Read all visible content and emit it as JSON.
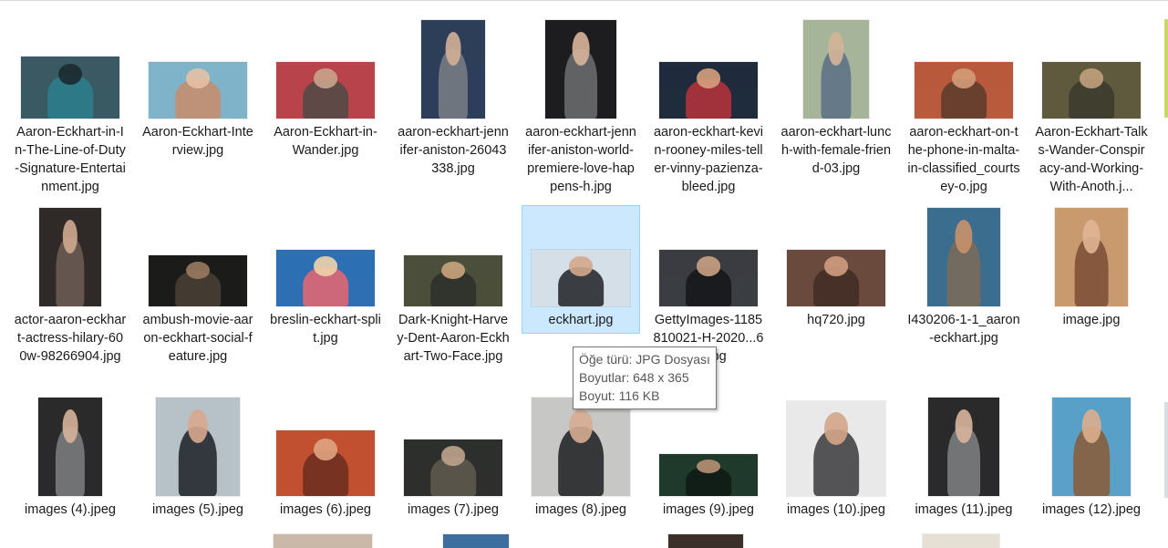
{
  "files": [
    {
      "label": "Aaron-Eckhart-in-In-The-Line-of-Duty-Signature-Entertainment.jpg",
      "icon": "image-thumbnail-icon",
      "colors": [
        "#3a5a63",
        "#2c7f8e",
        "#1c2a30"
      ]
    },
    {
      "label": "Aaron-Eckhart-Interview.jpg",
      "icon": "image-thumbnail-icon",
      "colors": [
        "#7fb3c9",
        "#c98c6a",
        "#e6c1a5"
      ]
    },
    {
      "label": "Aaron-Eckhart-in-Wander.jpg",
      "icon": "image-thumbnail-icon",
      "colors": [
        "#b9434a",
        "#4f4a46",
        "#c9a48d"
      ]
    },
    {
      "label": "aaron-eckhart-jennifer-aniston-26043338.jpg",
      "icon": "image-thumbnail-icon",
      "colors": [
        "#2d3e5a",
        "#7a7f85",
        "#d1b096"
      ]
    },
    {
      "label": "aaron-eckhart-jennifer-aniston-world-premiere-love-happens-h.jpg",
      "icon": "image-thumbnail-icon",
      "colors": [
        "#1d1d1f",
        "#6d6f70",
        "#d9b59a"
      ]
    },
    {
      "label": "aaron-eckhart-kevin-rooney-miles-teller-vinny-pazienza-bleed.jpg",
      "icon": "image-thumbnail-icon",
      "colors": [
        "#1f2c3c",
        "#b8323a",
        "#d6a07d"
      ]
    },
    {
      "label": "aaron-eckhart-lunch-with-female-friend-03.jpg",
      "icon": "image-thumbnail-icon",
      "colors": [
        "#a6b59a",
        "#5a6f86",
        "#d4b49a"
      ]
    },
    {
      "label": "aaron-eckhart-on-the-phone-in-malta-in-classified_courtsey-o.jpg",
      "icon": "image-thumbnail-icon",
      "colors": [
        "#b95a3c",
        "#5a3c2c",
        "#d49b78"
      ]
    },
    {
      "label": "Aaron-Eckhart-Talks-Wander-Conspiracy-and-Working-With-Anoth.j...",
      "icon": "image-thumbnail-icon",
      "colors": [
        "#5f5a3e",
        "#3b3a2c",
        "#c2a07c"
      ]
    },
    {
      "label": "actor-aaron-eckhart-actress-hilary-600w-98266904.jpg",
      "icon": "image-thumbnail-icon",
      "colors": [
        "#2f2a28",
        "#6d5d55",
        "#cfa890"
      ]
    },
    {
      "label": "ambush-movie-aaron-eckhart-social-feature.jpg",
      "icon": "image-thumbnail-icon",
      "colors": [
        "#1b1c1a",
        "#4a4036",
        "#9a7a60"
      ]
    },
    {
      "label": "breslin-eckhart-split.jpg",
      "icon": "image-thumbnail-icon",
      "colors": [
        "#2e6fb3",
        "#e7676e",
        "#f0d1a8"
      ]
    },
    {
      "label": "Dark-Knight-Harvey-Dent-Aaron-Eckhart-Two-Face.jpg",
      "icon": "image-thumbnail-icon",
      "colors": [
        "#4b4f3a",
        "#2b2f2a",
        "#c9a47e"
      ]
    },
    {
      "label": "eckhart.jpg",
      "icon": "image-thumbnail-icon",
      "colors": [
        "#d5dfe8",
        "#1f2125",
        "#d3a98c"
      ]
    },
    {
      "label": "GettyImages-1185810021-H-2020...690.jpg",
      "icon": "image-thumbnail-icon",
      "colors": [
        "#3a3d42",
        "#141518",
        "#caa084"
      ]
    },
    {
      "label": "hq720.jpg",
      "icon": "image-thumbnail-icon",
      "colors": [
        "#6a4a3c",
        "#3f2c24",
        "#cf9c7f"
      ]
    },
    {
      "label": "I430206-1-1_aaron-eckhart.jpg",
      "icon": "image-thumbnail-icon",
      "colors": [
        "#3b6e8e",
        "#7e6a58",
        "#c9916c"
      ]
    },
    {
      "label": "image.jpg",
      "icon": "image-thumbnail-icon",
      "colors": [
        "#c99a6e",
        "#7a4c36",
        "#e1b596"
      ]
    },
    {
      "label": "images (4).jpeg",
      "icon": "image-thumbnail-icon",
      "colors": [
        "#2a2a2c",
        "#7d7f80",
        "#d7b39a"
      ]
    },
    {
      "label": "images (5).jpeg",
      "icon": "image-thumbnail-icon",
      "colors": [
        "#b7c1c8",
        "#1c1f26",
        "#d8a990"
      ]
    },
    {
      "label": "images (6).jpeg",
      "icon": "image-thumbnail-icon",
      "colors": [
        "#c0502f",
        "#6b2d1e",
        "#e0a482"
      ]
    },
    {
      "label": "images (7).jpeg",
      "icon": "image-thumbnail-icon",
      "colors": [
        "#2e2f2d",
        "#5f5a50",
        "#bfa38d"
      ]
    },
    {
      "label": "images (8).jpeg",
      "icon": "image-thumbnail-icon",
      "colors": [
        "#c7c7c5",
        "#1c1d20",
        "#d6ac92"
      ]
    },
    {
      "label": "images (9).jpeg",
      "icon": "image-thumbnail-icon",
      "colors": [
        "#1f3a2c",
        "#0f1a14",
        "#b89074"
      ]
    },
    {
      "label": "images (10).jpeg",
      "icon": "image-thumbnail-icon",
      "colors": [
        "#e9e9ea",
        "#3a3a3c",
        "#d4a58a"
      ]
    },
    {
      "label": "images (11).jpeg",
      "icon": "image-thumbnail-icon",
      "colors": [
        "#2a2a2c",
        "#7f8183",
        "#d8b59c"
      ]
    },
    {
      "label": "images (12).jpeg",
      "icon": "image-thumbnail-icon",
      "colors": [
        "#5aa0c8",
        "#8a5a34",
        "#dcae8c"
      ]
    }
  ],
  "row4_colors": [
    "#c9b8a8",
    "#3c6e9e",
    "#3b2f29",
    "#e6e0d4"
  ],
  "selected_label": "eckhart.jpg",
  "tooltip": {
    "type_line": "Öğe türü: JPG Dosyası",
    "dimensions_line": "Boyutlar: 648 x 365",
    "size_line": "Boyut: 116 KB"
  }
}
